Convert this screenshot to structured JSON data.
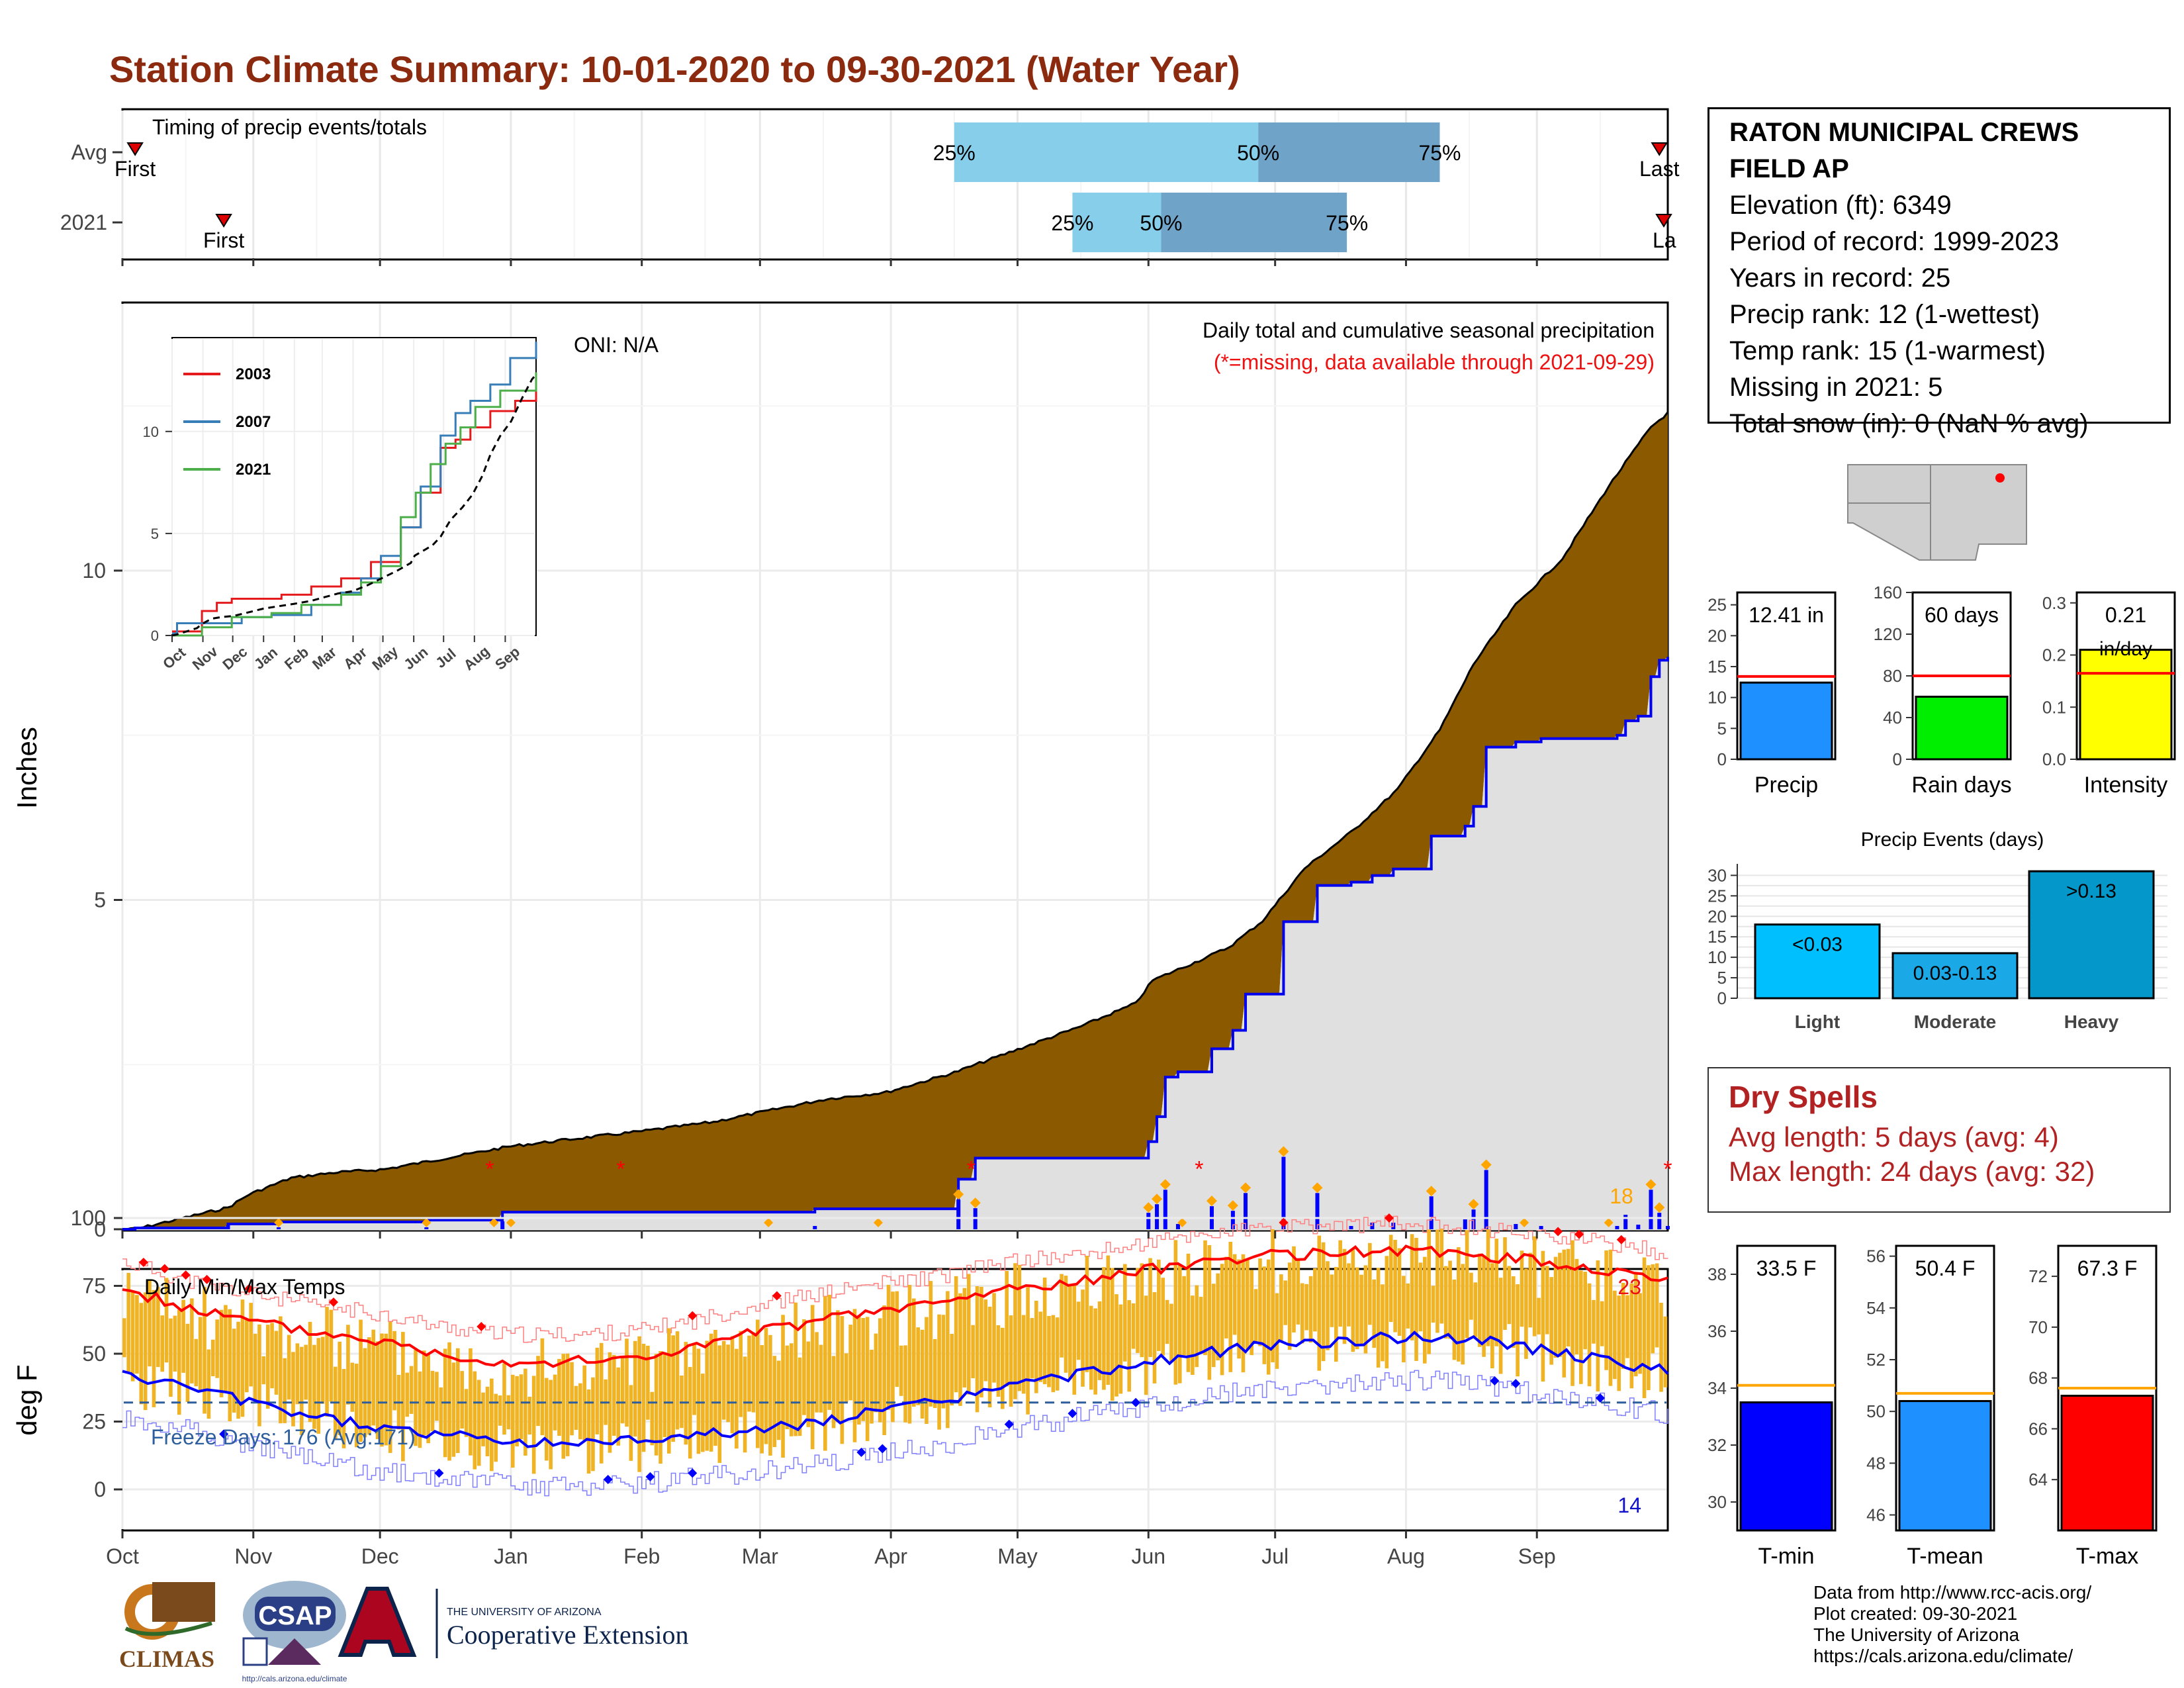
{
  "title": "Station Climate Summary: 10-01-2020 to 09-30-2021 (Water Year)",
  "colors": {
    "title": "#8b2a0e",
    "surplus": "#008000",
    "deficit": "#8b5a00",
    "daily_bar": "#0000ff",
    "event_marker": "#ffa500",
    "missing": "#ff0000",
    "temp_bar": "#f0b324",
    "tmax_line": "#ff0000",
    "tmin_line": "#0000ff"
  },
  "station": {
    "name_line1": "RATON MUNICIPAL CREWS",
    "name_line2": "FIELD AP",
    "elevation": "Elevation (ft): 6349",
    "period": "Period of record: 1999-2023",
    "years": "Years in record: 25",
    "precip_rank": "Precip rank: 12 (1-wettest)",
    "temp_rank": "Temp rank: 15 (1-warmest)",
    "missing": "Missing in 2021: 5",
    "snow": "Total snow (in): 0 (NaN % avg)"
  },
  "timing": {
    "label": "Timing of precip events/totals",
    "row_labels": [
      "Avg",
      "2021"
    ],
    "marker_first": "First",
    "marker_last": "Last",
    "marker_last_clipped": "La",
    "avg": {
      "first_day": 3,
      "last_day": 364,
      "p25_day": 197,
      "p50_day": 269,
      "p75_day": 312
    },
    "y2021": {
      "first_day": 24,
      "last_day": 367,
      "p25_day": 225,
      "p50_day": 246,
      "p75_day": 290
    },
    "pct_labels": [
      "25%",
      "50%",
      "75%"
    ]
  },
  "month_labels": [
    "Oct",
    "Nov",
    "Dec",
    "Jan",
    "Feb",
    "Mar",
    "Apr",
    "May",
    "Jun",
    "Jul",
    "Aug",
    "Sep"
  ],
  "precip_panel": {
    "ylabel": "Inches",
    "title_line1": "Daily total and cumulative seasonal precipitation",
    "title_line2": "(*=missing, data available through 2021-09-29)",
    "oni": "ONI: N/A",
    "event_count": "18",
    "yticks": [
      "0",
      "5",
      "10"
    ]
  },
  "inset": {
    "legend": [
      "2003",
      "2007",
      "2021"
    ],
    "legend_colors": [
      "#e41a1c",
      "#377eb8",
      "#4daf4a"
    ],
    "months": [
      "Oct",
      "Nov",
      "Dec",
      "Jan",
      "Feb",
      "Mar",
      "Apr",
      "May",
      "Jun",
      "Jul",
      "Aug",
      "Sep"
    ],
    "yticks": [
      "0",
      "5",
      "10"
    ]
  },
  "temp_panel": {
    "ylabel": "deg F",
    "label": "Daily Min/Max Temps",
    "freeze": "Freeze Days: 176 (Avg:171)",
    "hot_count": "23",
    "cold_count": "14",
    "yticks": [
      "0",
      "25",
      "50",
      "75",
      "100"
    ]
  },
  "precip_bars": {
    "titles": [
      "12.41 in",
      "60 days",
      "0.21"
    ],
    "subtitle_intensity": "in/day",
    "xlabels": [
      "Precip",
      "Rain days",
      "Intensity"
    ],
    "precip_ticks": [
      "0",
      "5",
      "10",
      "15",
      "20",
      "25"
    ],
    "days_ticks": [
      "0",
      "40",
      "80",
      "120",
      "160"
    ],
    "intensity_ticks": [
      "0.0",
      "0.1",
      "0.2",
      "0.3"
    ]
  },
  "events": {
    "title": "Precip Events (days)",
    "categories": [
      "Light",
      "Moderate",
      "Heavy"
    ],
    "bar_labels": [
      "<0.03",
      "0.03-0.13",
      ">0.13"
    ],
    "yticks": [
      "0",
      "5",
      "10",
      "15",
      "20",
      "25",
      "30"
    ]
  },
  "dry_spells": {
    "title": "Dry Spells",
    "avg": "Avg length: 5 days (avg: 4)",
    "max": "Max length: 24 days (avg: 32)"
  },
  "temp_bars": {
    "titles": [
      "33.5 F",
      "50.4 F",
      "67.3 F"
    ],
    "xlabels": [
      "T-min",
      "T-mean",
      "T-max"
    ],
    "tmin_ticks": [
      "30",
      "32",
      "34",
      "36",
      "38"
    ],
    "tmean_ticks": [
      "46",
      "48",
      "50",
      "52",
      "54",
      "56"
    ],
    "tmax_ticks": [
      "64",
      "66",
      "68",
      "70",
      "72"
    ]
  },
  "logos": {
    "climas": "CLIMAS",
    "csap": "CSAP",
    "csap_url": "http://cals.arizona.edu/climate",
    "ua_line1": "THE UNIVERSITY OF ARIZONA",
    "ua_line2": "Cooperative Extension"
  },
  "credits": [
    "Data from http://www.rcc-acis.org/",
    "Plot created: 09-30-2021",
    "The University of Arizona",
    "https://cals.arizona.edu/climate/"
  ],
  "chart_data": [
    {
      "type": "area",
      "title": "Daily total and cumulative seasonal precipitation",
      "ylabel": "Inches",
      "ylim": [
        0,
        14
      ],
      "x_unit": "day of water year (Oct 1 = 0)",
      "series": [
        {
          "name": "2021",
          "points": [
            [
              0,
              0
            ],
            [
              5,
              0.05
            ],
            [
              15,
              0.2
            ],
            [
              25,
              0.35
            ],
            [
              30,
              0.55
            ],
            [
              40,
              0.8
            ],
            [
              50,
              0.88
            ],
            [
              62,
              0.93
            ],
            [
              75,
              1.08
            ],
            [
              92,
              1.28
            ],
            [
              108,
              1.4
            ],
            [
              122,
              1.5
            ],
            [
              140,
              1.65
            ],
            [
              153,
              1.82
            ],
            [
              167,
              2.0
            ],
            [
              181,
              2.1
            ],
            [
              197,
              2.4
            ],
            [
              212,
              2.75
            ],
            [
              227,
              3.1
            ],
            [
              240,
              3.45
            ],
            [
              244,
              3.8
            ],
            [
              255,
              4.1
            ],
            [
              262,
              4.3
            ],
            [
              270,
              4.7
            ],
            [
              280,
              5.5
            ],
            [
              292,
              6.1
            ],
            [
              302,
              6.7
            ],
            [
              312,
              7.6
            ],
            [
              320,
              8.6
            ],
            [
              330,
              9.5
            ],
            [
              341,
              10.2
            ],
            [
              352,
              11.3
            ],
            [
              362,
              12.2
            ],
            [
              366,
              12.41
            ]
          ]
        }
      ],
      "daily_precip": [
        [
          3,
          0.02
        ],
        [
          25,
          0.06
        ],
        [
          37,
          0.03
        ],
        [
          72,
          0.03
        ],
        [
          90,
          0.12
        ],
        [
          164,
          0.05
        ],
        [
          198,
          0.45
        ],
        [
          202,
          0.32
        ],
        [
          243,
          0.25
        ],
        [
          245,
          0.38
        ],
        [
          247,
          0.6
        ],
        [
          250,
          0.08
        ],
        [
          258,
          0.35
        ],
        [
          263,
          0.28
        ],
        [
          266,
          0.55
        ],
        [
          275,
          1.1
        ],
        [
          283,
          0.55
        ],
        [
          291,
          0.05
        ],
        [
          296,
          0.1
        ],
        [
          301,
          0.1
        ],
        [
          310,
          0.5
        ],
        [
          318,
          0.15
        ],
        [
          320,
          0.3
        ],
        [
          323,
          0.9
        ],
        [
          330,
          0.08
        ],
        [
          336,
          0.05
        ],
        [
          354,
          0.05
        ],
        [
          356,
          0.22
        ],
        [
          359,
          0.07
        ],
        [
          362,
          0.6
        ],
        [
          364,
          0.25
        ],
        [
          366,
          0.05
        ]
      ],
      "missing_days": [
        87,
        118,
        201,
        255,
        366
      ]
    },
    {
      "type": "line",
      "title": "Daily Min/Max Temps",
      "ylabel": "deg F",
      "ylim": [
        -20,
        108
      ],
      "series": [
        {
          "name": "Avg max",
          "points": [
            [
              0,
              74
            ],
            [
              15,
              67
            ],
            [
              30,
              62
            ],
            [
              45,
              58
            ],
            [
              60,
              55
            ],
            [
              75,
              50
            ],
            [
              90,
              47
            ],
            [
              105,
              47
            ],
            [
              120,
              48
            ],
            [
              135,
              52
            ],
            [
              150,
              58
            ],
            [
              165,
              62
            ],
            [
              180,
              66
            ],
            [
              195,
              69
            ],
            [
              210,
              74
            ],
            [
              225,
              76
            ],
            [
              240,
              80
            ],
            [
              255,
              84
            ],
            [
              270,
              86
            ],
            [
              285,
              87
            ],
            [
              300,
              88
            ],
            [
              315,
              87
            ],
            [
              330,
              85
            ],
            [
              345,
              82
            ],
            [
              360,
              79
            ],
            [
              366,
              76
            ]
          ]
        },
        {
          "name": "Avg min",
          "points": [
            [
              0,
              42
            ],
            [
              15,
              38
            ],
            [
              30,
              32
            ],
            [
              45,
              27
            ],
            [
              60,
              23
            ],
            [
              75,
              20
            ],
            [
              90,
              18
            ],
            [
              105,
              17
            ],
            [
              120,
              18
            ],
            [
              135,
              20
            ],
            [
              150,
              22
            ],
            [
              165,
              25
            ],
            [
              180,
              29
            ],
            [
              195,
              33
            ],
            [
              210,
              38
            ],
            [
              225,
              42
            ],
            [
              240,
              46
            ],
            [
              255,
              50
            ],
            [
              270,
              53
            ],
            [
              285,
              54
            ],
            [
              300,
              56
            ],
            [
              315,
              56
            ],
            [
              330,
              53
            ],
            [
              345,
              49
            ],
            [
              360,
              45
            ],
            [
              366,
              44
            ]
          ]
        }
      ],
      "freeze_threshold": 32
    },
    {
      "type": "bar",
      "categories": [
        "Precip",
        "Rain days",
        "Intensity"
      ],
      "values": [
        12.41,
        60,
        0.21
      ],
      "averages": [
        13.4,
        80,
        0.165
      ]
    },
    {
      "type": "bar",
      "title": "Precip Events (days)",
      "categories": [
        "Light",
        "Moderate",
        "Heavy"
      ],
      "values": [
        18,
        11,
        31
      ],
      "ylim": [
        0,
        32
      ]
    },
    {
      "type": "bar",
      "categories": [
        "T-min",
        "T-mean",
        "T-max"
      ],
      "values": [
        33.5,
        50.4,
        67.3
      ],
      "averages": [
        34.1,
        50.7,
        67.6
      ]
    }
  ]
}
